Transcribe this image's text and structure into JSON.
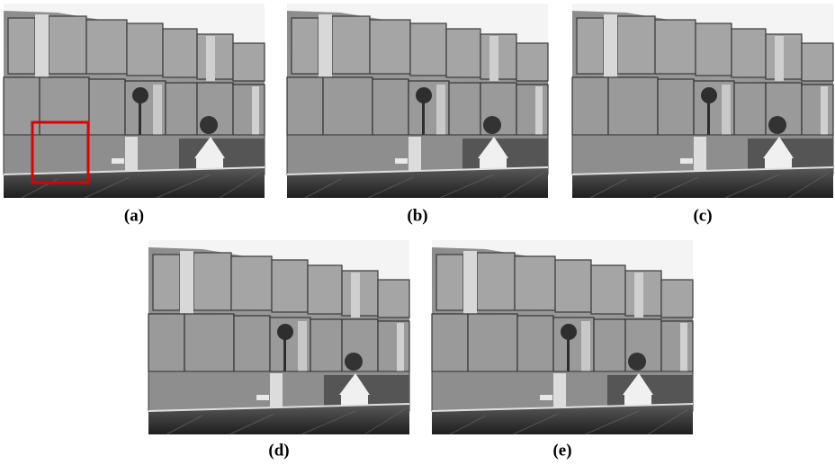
{
  "figure": {
    "panels": [
      {
        "label": "(a)"
      },
      {
        "label": "(b)"
      },
      {
        "label": "(c)"
      },
      {
        "label": "(d)"
      },
      {
        "label": "(e)"
      }
    ]
  }
}
